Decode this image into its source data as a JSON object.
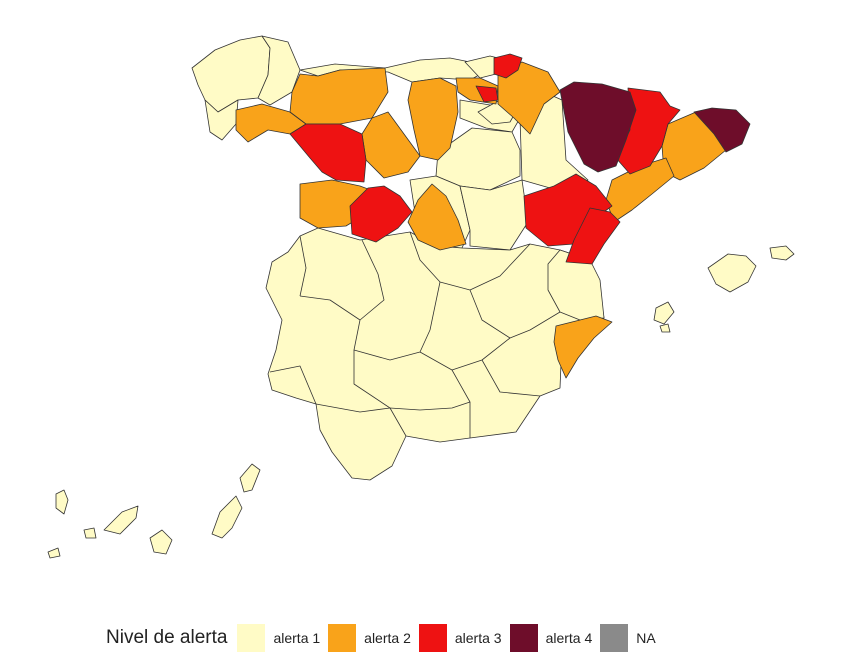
{
  "map": {
    "subject": "Spain provinces, COVID alert level",
    "colors": {
      "alerta1": "#fffbc6",
      "alerta2": "#f9a31a",
      "alerta3": "#ee1212",
      "alerta4": "#6e0d2a",
      "na": "#8a8a8a"
    },
    "province_levels": [
      {
        "province": "A Coruña",
        "level": "alerta 1"
      },
      {
        "province": "Lugo",
        "level": "alerta 1"
      },
      {
        "province": "Pontevedra",
        "level": "alerta 1"
      },
      {
        "province": "Ourense",
        "level": "alerta 2"
      },
      {
        "province": "Asturias",
        "level": "alerta 2"
      },
      {
        "province": "Cantabria",
        "level": "alerta 1"
      },
      {
        "province": "Bizkaia",
        "level": "alerta 2"
      },
      {
        "province": "Gipuzkoa",
        "level": "alerta 3"
      },
      {
        "province": "Álava",
        "level": "alerta 2"
      },
      {
        "province": "Navarra",
        "level": "alerta 2"
      },
      {
        "province": "Huesca",
        "level": "alerta 4"
      },
      {
        "province": "Lleida",
        "level": "alerta 3"
      },
      {
        "province": "Girona",
        "level": "alerta 4"
      },
      {
        "province": "Barcelona",
        "level": "alerta 2"
      },
      {
        "province": "Tarragona",
        "level": "alerta 2"
      },
      {
        "province": "León",
        "level": "alerta 3"
      },
      {
        "province": "Palencia",
        "level": "alerta 2"
      },
      {
        "province": "Burgos",
        "level": "alerta 2"
      },
      {
        "province": "La Rioja",
        "level": "alerta 1"
      },
      {
        "province": "Zaragoza",
        "level": "alerta 1"
      },
      {
        "province": "Teruel",
        "level": "alerta 3"
      },
      {
        "province": "Castellón",
        "level": "alerta 3"
      },
      {
        "province": "Zamora",
        "level": "alerta 2"
      },
      {
        "province": "Valladolid",
        "level": "alerta 3"
      },
      {
        "province": "Segovia",
        "level": "alerta 2"
      },
      {
        "province": "Soria",
        "level": "alerta 1"
      },
      {
        "province": "Alicante",
        "level": "alerta 2"
      },
      {
        "province": "Illes Balears",
        "level": "alerta 1"
      },
      {
        "province": "Canarias",
        "level": "alerta 1"
      }
    ]
  },
  "legend": {
    "title": "Nivel de alerta",
    "items": [
      {
        "label": "alerta 1",
        "color": "#fffbc6"
      },
      {
        "label": "alerta 2",
        "color": "#f9a31a"
      },
      {
        "label": "alerta 3",
        "color": "#ee1212"
      },
      {
        "label": "alerta 4",
        "color": "#6e0d2a"
      },
      {
        "label": "NA",
        "color": "#8a8a8a"
      }
    ]
  }
}
